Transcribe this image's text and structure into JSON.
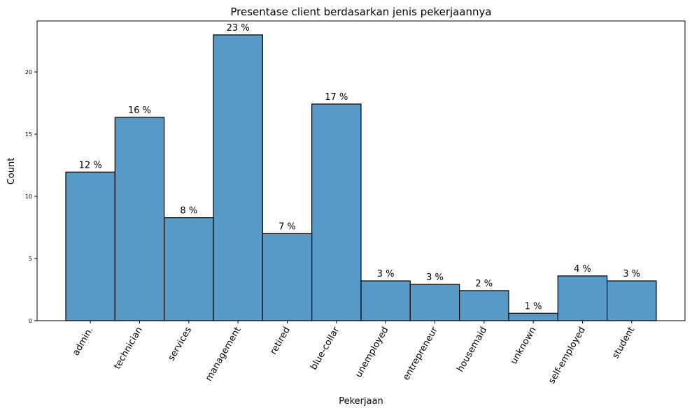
{
  "chart_data": {
    "type": "bar",
    "title": "Presentase client berdasarkan jenis pekerjaannya",
    "xlabel": "Pekerjaan",
    "ylabel": "Count",
    "categories": [
      "admin.",
      "technician",
      "services",
      "management",
      "retired",
      "blue-collar",
      "unemployed",
      "entrepreneur",
      "housemaid",
      "unknown",
      "self-employed",
      "student"
    ],
    "values": [
      11.95,
      16.35,
      8.28,
      22.98,
      7.0,
      17.42,
      3.2,
      2.92,
      2.42,
      0.6,
      3.6,
      3.2
    ],
    "data_labels": [
      "12 %",
      "16 %",
      "8 %",
      "23 %",
      "7 %",
      "17 %",
      "3 %",
      "3 %",
      "2 %",
      "1 %",
      "4 %",
      "3 %"
    ],
    "yticks": [
      0,
      5,
      10,
      15,
      20
    ],
    "ylim": [
      0,
      24.1
    ],
    "grid": false,
    "colors": {
      "bar_fill": "#5799c7",
      "bar_edge": "#000000"
    }
  }
}
